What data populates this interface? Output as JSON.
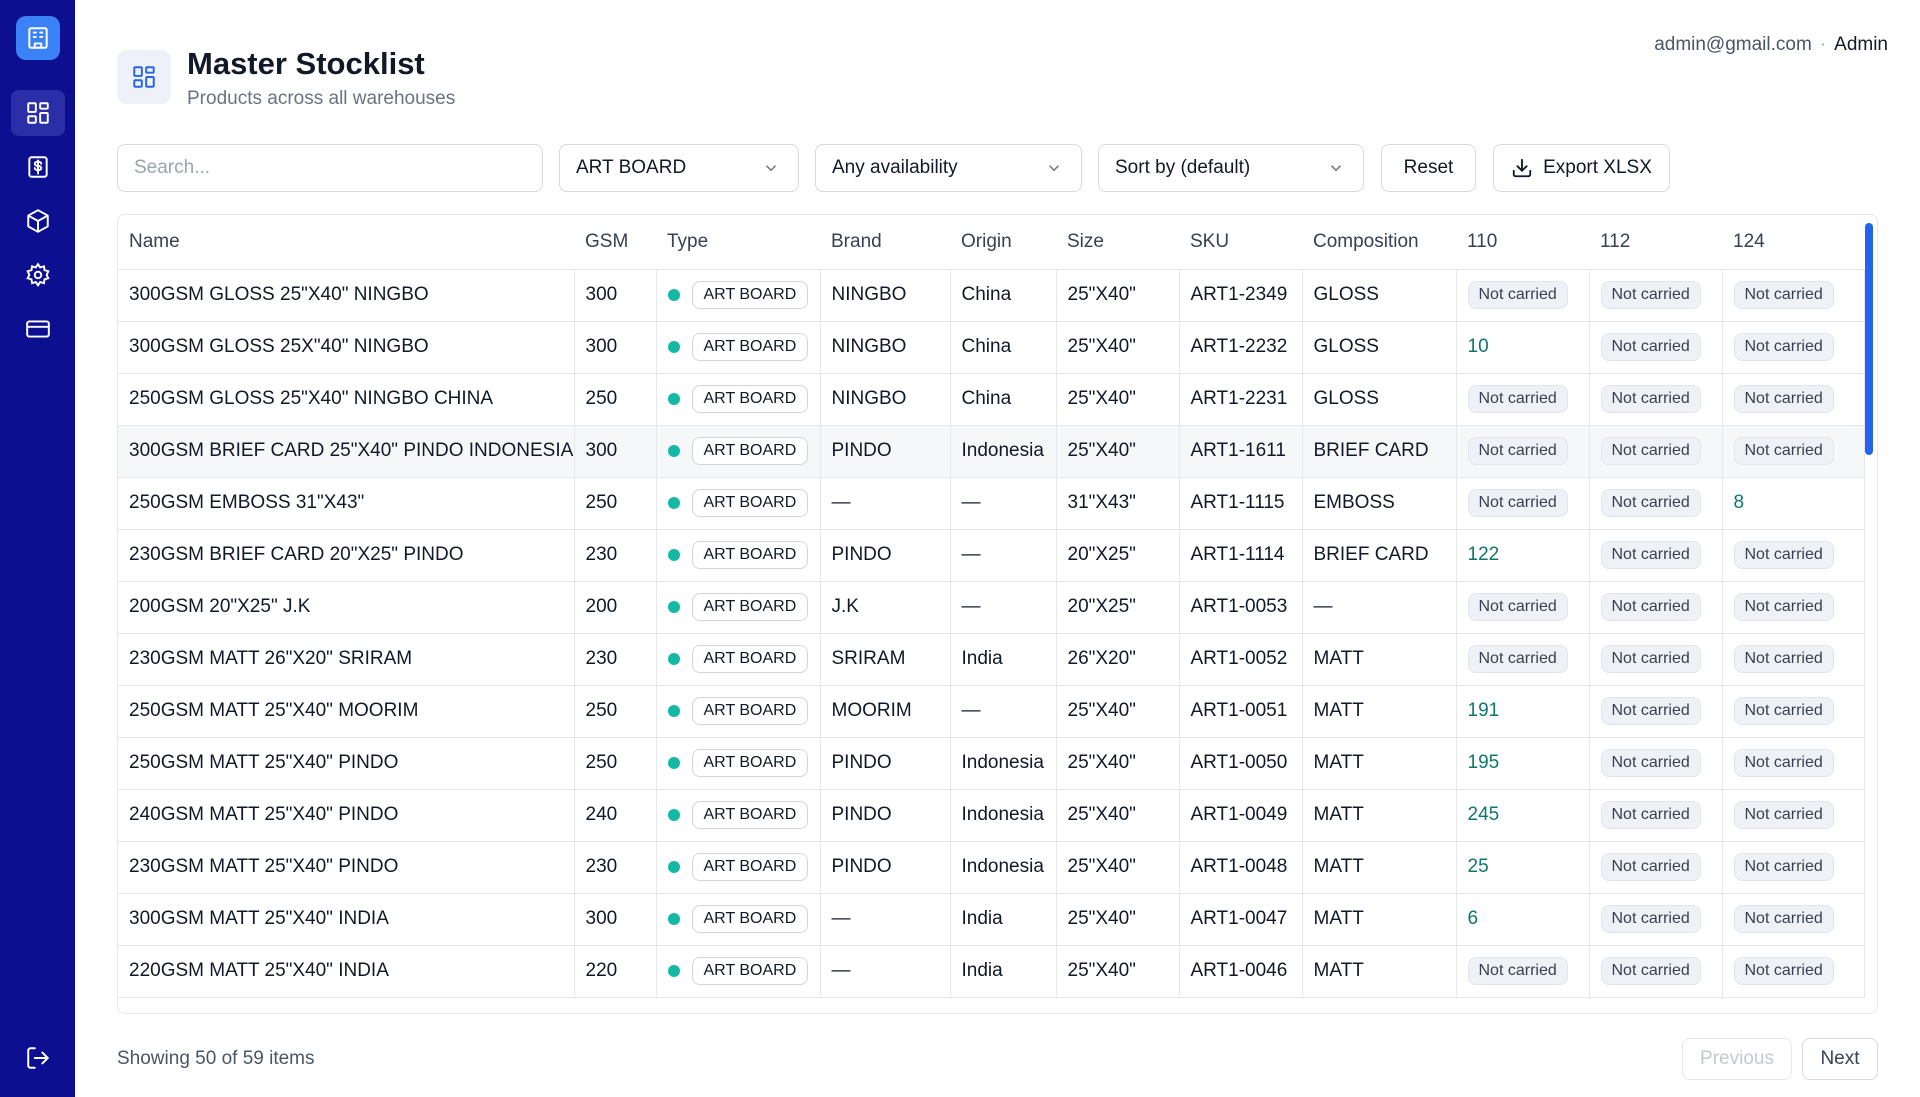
{
  "sidebar": {
    "logo_icon": "building-icon",
    "items": [
      {
        "name": "dashboard",
        "icon": "grid-icon",
        "active": true
      },
      {
        "name": "pricing",
        "icon": "dollar-doc-icon",
        "active": false
      },
      {
        "name": "products",
        "icon": "box-icon",
        "active": false
      },
      {
        "name": "settings",
        "icon": "gear-icon",
        "active": false
      },
      {
        "name": "payments",
        "icon": "card-icon",
        "active": false
      }
    ],
    "logout_icon": "logout-icon"
  },
  "header": {
    "title": "Master Stocklist",
    "subtitle": "Products across all warehouses",
    "user_email": "admin@gmail.com",
    "separator": "·",
    "user_role": "Admin"
  },
  "toolbar": {
    "search_placeholder": "Search...",
    "type_filter": "ART BOARD",
    "availability_filter": "Any availability",
    "sort": "Sort by (default)",
    "reset_label": "Reset",
    "export_label": "Export XLSX"
  },
  "table": {
    "columns": [
      "Name",
      "GSM",
      "Type",
      "Brand",
      "Origin",
      "Size",
      "SKU",
      "Composition",
      "110",
      "112",
      "124"
    ],
    "rows": [
      {
        "name": "300GSM GLOSS 25\"X40\" NINGBO",
        "gsm": "300",
        "type": "ART BOARD",
        "brand": "NINGBO",
        "origin": "China",
        "size": "25\"X40\"",
        "sku": "ART1-2349",
        "composition": "GLOSS",
        "w110": "Not carried",
        "w112": "Not carried",
        "w124": "Not carried"
      },
      {
        "name": "300GSM GLOSS 25X\"40\" NINGBO",
        "gsm": "300",
        "type": "ART BOARD",
        "brand": "NINGBO",
        "origin": "China",
        "size": "25\"X40\"",
        "sku": "ART1-2232",
        "composition": "GLOSS",
        "w110": "10",
        "w112": "Not carried",
        "w124": "Not carried"
      },
      {
        "name": "250GSM GLOSS 25\"X40\" NINGBO CHINA",
        "gsm": "250",
        "type": "ART BOARD",
        "brand": "NINGBO",
        "origin": "China",
        "size": "25\"X40\"",
        "sku": "ART1-2231",
        "composition": "GLOSS",
        "w110": "Not carried",
        "w112": "Not carried",
        "w124": "Not carried"
      },
      {
        "name": "300GSM BRIEF CARD 25\"X40\" PINDO INDONESIA",
        "gsm": "300",
        "type": "ART BOARD",
        "brand": "PINDO",
        "origin": "Indonesia",
        "size": "25\"X40\"",
        "sku": "ART1-1611",
        "composition": "BRIEF CARD",
        "w110": "Not carried",
        "w112": "Not carried",
        "w124": "Not carried",
        "highlight": true
      },
      {
        "name": "250GSM EMBOSS 31\"X43\"",
        "gsm": "250",
        "type": "ART BOARD",
        "brand": "—",
        "origin": "—",
        "size": "31\"X43\"",
        "sku": "ART1-1115",
        "composition": "EMBOSS",
        "w110": "Not carried",
        "w112": "Not carried",
        "w124": "8"
      },
      {
        "name": "230GSM BRIEF CARD 20\"X25\" PINDO",
        "gsm": "230",
        "type": "ART BOARD",
        "brand": "PINDO",
        "origin": "—",
        "size": "20\"X25\"",
        "sku": "ART1-1114",
        "composition": "BRIEF CARD",
        "w110": "122",
        "w112": "Not carried",
        "w124": "Not carried"
      },
      {
        "name": "200GSM 20\"X25\" J.K",
        "gsm": "200",
        "type": "ART BOARD",
        "brand": "J.K",
        "origin": "—",
        "size": "20\"X25\"",
        "sku": "ART1-0053",
        "composition": "—",
        "w110": "Not carried",
        "w112": "Not carried",
        "w124": "Not carried"
      },
      {
        "name": "230GSM MATT 26\"X20\" SRIRAM",
        "gsm": "230",
        "type": "ART BOARD",
        "brand": "SRIRAM",
        "origin": "India",
        "size": "26\"X20\"",
        "sku": "ART1-0052",
        "composition": "MATT",
        "w110": "Not carried",
        "w112": "Not carried",
        "w124": "Not carried"
      },
      {
        "name": "250GSM MATT 25\"X40\" MOORIM",
        "gsm": "250",
        "type": "ART BOARD",
        "brand": "MOORIM",
        "origin": "—",
        "size": "25\"X40\"",
        "sku": "ART1-0051",
        "composition": "MATT",
        "w110": "191",
        "w112": "Not carried",
        "w124": "Not carried"
      },
      {
        "name": "250GSM MATT 25\"X40\" PINDO",
        "gsm": "250",
        "type": "ART BOARD",
        "brand": "PINDO",
        "origin": "Indonesia",
        "size": "25\"X40\"",
        "sku": "ART1-0050",
        "composition": "MATT",
        "w110": "195",
        "w112": "Not carried",
        "w124": "Not carried"
      },
      {
        "name": "240GSM MATT 25\"X40\" PINDO",
        "gsm": "240",
        "type": "ART BOARD",
        "brand": "PINDO",
        "origin": "Indonesia",
        "size": "25\"X40\"",
        "sku": "ART1-0049",
        "composition": "MATT",
        "w110": "245",
        "w112": "Not carried",
        "w124": "Not carried"
      },
      {
        "name": "230GSM MATT 25\"X40\" PINDO",
        "gsm": "230",
        "type": "ART BOARD",
        "brand": "PINDO",
        "origin": "Indonesia",
        "size": "25\"X40\"",
        "sku": "ART1-0048",
        "composition": "MATT",
        "w110": "25",
        "w112": "Not carried",
        "w124": "Not carried"
      },
      {
        "name": "300GSM MATT 25\"X40\" INDIA",
        "gsm": "300",
        "type": "ART BOARD",
        "brand": "—",
        "origin": "India",
        "size": "25\"X40\"",
        "sku": "ART1-0047",
        "composition": "MATT",
        "w110": "6",
        "w112": "Not carried",
        "w124": "Not carried"
      },
      {
        "name": "220GSM MATT 25\"X40\" INDIA",
        "gsm": "220",
        "type": "ART BOARD",
        "brand": "—",
        "origin": "India",
        "size": "25\"X40\"",
        "sku": "ART1-0046",
        "composition": "MATT",
        "w110": "Not carried",
        "w112": "Not carried",
        "w124": "Not carried"
      }
    ]
  },
  "footer": {
    "showing": "Showing 50 of 59 items",
    "prev_label": "Previous",
    "next_label": "Next"
  },
  "colors": {
    "sidebar_bg": "#0c1090",
    "accent": "#3b82f6",
    "type_dot": "#14b8a6",
    "quantity_text": "#0f766e"
  }
}
